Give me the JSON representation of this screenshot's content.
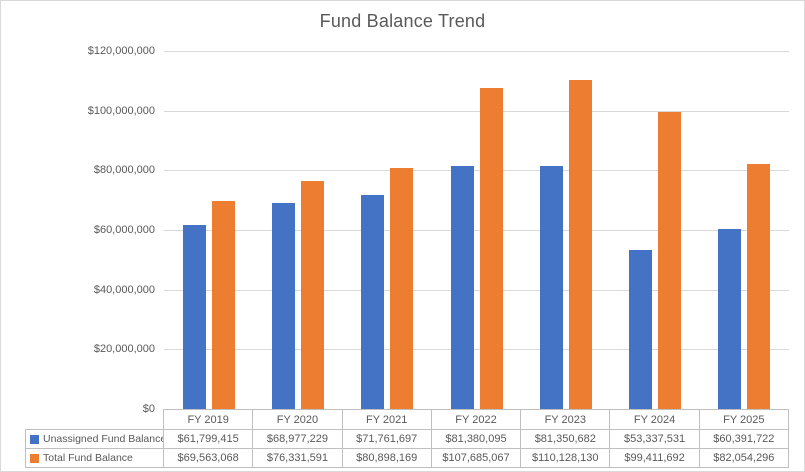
{
  "chart": {
    "title": "Fund Balance Trend"
  },
  "colors": {
    "text": "#595959",
    "gridline": "#D9D9D9",
    "table_border": "#BFBFBF",
    "frame_border": "#D9D9D9",
    "background": "#FFFFFF",
    "series_blue": "#4472C4",
    "series_orange": "#ED7D31"
  },
  "chart_data": {
    "type": "bar",
    "title": "Fund Balance Trend",
    "categories": [
      "FY 2019",
      "FY 2020",
      "FY 2021",
      "FY 2022",
      "FY 2023",
      "FY 2024",
      "FY 2025"
    ],
    "series": [
      {
        "key": "unassigned-fund-balance",
        "name": "Unassigned Fund Balance",
        "color": "#4472C4",
        "swatch": "square-icon",
        "values": [
          61799415,
          68977229,
          71761697,
          81380095,
          81350682,
          53337531,
          60391722
        ],
        "labels": [
          "$61,799,415",
          "$68,977,229",
          "$71,761,697",
          "$81,380,095",
          "$81,350,682",
          "$53,337,531",
          "$60,391,722"
        ]
      },
      {
        "key": "total-fund-balance",
        "name": "Total Fund Balance",
        "color": "#ED7D31",
        "swatch": "square-icon",
        "values": [
          69563068,
          76331591,
          80898169,
          107685067,
          110128130,
          99411692,
          82054296
        ],
        "labels": [
          "$69,563,068",
          "$76,331,591",
          "$80,898,169",
          "$107,685,067",
          "$110,128,130",
          "$99,411,692",
          "$82,054,296"
        ]
      }
    ],
    "ylim": [
      0,
      120000000
    ],
    "ytick_step": 20000000,
    "ytick_labels": [
      "$0",
      "$20,000,000",
      "$40,000,000",
      "$60,000,000",
      "$80,000,000",
      "$100,000,000",
      "$120,000,000"
    ],
    "grid": true,
    "legend_position": "data-table-left",
    "xlabel": "",
    "ylabel": ""
  }
}
